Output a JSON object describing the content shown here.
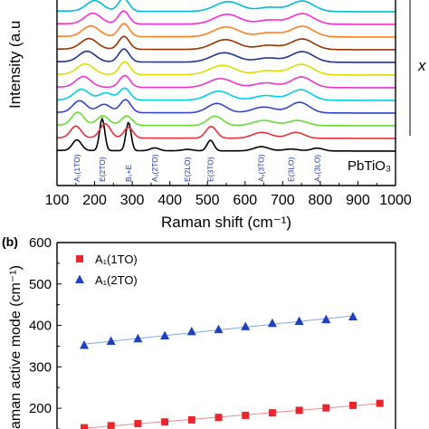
{
  "chart_data": [
    {
      "type": "line",
      "panel": "",
      "xlabel": "Raman shift (cm⁻¹)",
      "ylabel": "Intensity (a.u",
      "xlim": [
        100,
        1000
      ],
      "x_ticks": [
        100,
        200,
        300,
        400,
        500,
        600,
        700,
        800,
        900,
        1000
      ],
      "right_label": "x",
      "bottom_spectrum_label": "PbTiO₃",
      "mode_labels": [
        {
          "text": "A₁(1TO)",
          "x": 153
        },
        {
          "text": "E(2TO)",
          "x": 220
        },
        {
          "text": "B₁+E",
          "x": 290
        },
        {
          "text": "A₁(2TO)",
          "x": 360
        },
        {
          "text": "E(2LO)",
          "x": 447
        },
        {
          "text": "E(3TO)",
          "x": 508
        },
        {
          "text": "A₁(3TO)",
          "x": 643
        },
        {
          "text": "E(3LO)",
          "x": 722
        },
        {
          "text": "A₁(3LO)",
          "x": 792
        }
      ],
      "series": [
        {
          "color": "#000000",
          "offset": 0,
          "peaks": [
            [
              153,
              0.45,
              12
            ],
            [
              220,
              1.35,
              7
            ],
            [
              290,
              1.2,
              7
            ],
            [
              360,
              0.12,
              12
            ],
            [
              447,
              0.06,
              14
            ],
            [
              508,
              0.45,
              9
            ],
            [
              643,
              0.18,
              20
            ],
            [
              722,
              0.08,
              20
            ],
            [
              792,
              0.12,
              16
            ]
          ]
        },
        {
          "color": "#e8303a",
          "offset": 1,
          "peaks": [
            [
              150,
              0.5,
              14
            ],
            [
              228,
              0.6,
              14
            ],
            [
              290,
              0.45,
              12
            ],
            [
              510,
              0.5,
              14
            ],
            [
              645,
              0.25,
              25
            ],
            [
              735,
              0.25,
              22
            ]
          ]
        },
        {
          "color": "#66dd33",
          "offset": 2,
          "peaks": [
            [
              155,
              0.55,
              16
            ],
            [
              222,
              0.4,
              16
            ],
            [
              285,
              0.4,
              14
            ],
            [
              520,
              0.4,
              20
            ],
            [
              650,
              0.22,
              28
            ],
            [
              740,
              0.22,
              25
            ]
          ]
        },
        {
          "color": "#3344cc",
          "offset": 3,
          "peaks": [
            [
              160,
              0.5,
              18
            ],
            [
              225,
              0.35,
              18
            ],
            [
              282,
              0.55,
              14
            ],
            [
              525,
              0.4,
              25
            ],
            [
              650,
              0.25,
              30
            ],
            [
              745,
              0.45,
              26
            ]
          ]
        },
        {
          "color": "#00cfe8",
          "offset": 4,
          "peaks": [
            [
              165,
              0.45,
              20
            ],
            [
              230,
              0.3,
              18
            ],
            [
              280,
              0.5,
              14
            ],
            [
              530,
              0.38,
              30
            ],
            [
              655,
              0.2,
              30
            ],
            [
              748,
              0.45,
              28
            ]
          ]
        },
        {
          "color": "#ee33cc",
          "offset": 5,
          "peaks": [
            [
              170,
              0.45,
              20
            ],
            [
              280,
              0.5,
              14
            ],
            [
              535,
              0.38,
              32
            ],
            [
              655,
              0.2,
              30
            ],
            [
              750,
              0.45,
              28
            ]
          ]
        },
        {
          "color": "#dddd00",
          "offset": 6,
          "peaks": [
            [
              175,
              0.45,
              22
            ],
            [
              280,
              0.55,
              14
            ],
            [
              540,
              0.4,
              34
            ],
            [
              660,
              0.18,
              30
            ],
            [
              750,
              0.45,
              30
            ]
          ]
        },
        {
          "color": "#223388",
          "offset": 7,
          "peaks": [
            [
              180,
              0.45,
              22
            ],
            [
              278,
              0.55,
              14
            ],
            [
              545,
              0.4,
              34
            ],
            [
              660,
              0.18,
              30
            ],
            [
              752,
              0.45,
              30
            ]
          ]
        },
        {
          "color": "#993300",
          "offset": 8,
          "peaks": [
            [
              185,
              0.45,
              22
            ],
            [
              278,
              0.55,
              14
            ],
            [
              548,
              0.42,
              34
            ],
            [
              662,
              0.18,
              30
            ],
            [
              752,
              0.45,
              30
            ]
          ]
        },
        {
          "color": "#ff7f1e",
          "offset": 9,
          "peaks": [
            [
              190,
              0.45,
              22
            ],
            [
              278,
              0.55,
              14
            ],
            [
              550,
              0.42,
              34
            ],
            [
              665,
              0.18,
              30
            ],
            [
              752,
              0.45,
              30
            ]
          ]
        },
        {
          "color": "#ff2ad4",
          "offset": 10,
          "peaks": [
            [
              195,
              0.45,
              22
            ],
            [
              277,
              0.55,
              14
            ],
            [
              552,
              0.42,
              34
            ],
            [
              665,
              0.18,
              30
            ],
            [
              752,
              0.45,
              30
            ]
          ]
        },
        {
          "color": "#00bcd8",
          "offset": 11,
          "peaks": [
            [
              200,
              0.45,
              22
            ],
            [
              277,
              0.55,
              14
            ],
            [
              555,
              0.42,
              34
            ],
            [
              665,
              0.18,
              30
            ],
            [
              752,
              0.45,
              30
            ]
          ]
        }
      ]
    },
    {
      "type": "scatter",
      "panel": "(b)",
      "ylabel": "aman active mode (cm⁻¹)",
      "ylim": [
        150,
        600
      ],
      "y_ticks": [
        200,
        300,
        400,
        500,
        600
      ],
      "x": [
        0,
        1,
        2,
        3,
        4,
        5,
        6,
        7,
        8,
        9,
        10,
        11
      ],
      "series": [
        {
          "name": "A₁(1TO)",
          "color": "#e8262b",
          "marker": "square",
          "values": [
            153,
            158,
            163,
            167,
            172,
            178,
            183,
            189,
            195,
            201,
            207,
            212
          ]
        },
        {
          "name": "A₁(2TO)",
          "color": "#1f3fbf",
          "marker": "triangle",
          "values": [
            352,
            362,
            368,
            375,
            385,
            390,
            397,
            405,
            410,
            414,
            421
          ]
        }
      ]
    }
  ]
}
